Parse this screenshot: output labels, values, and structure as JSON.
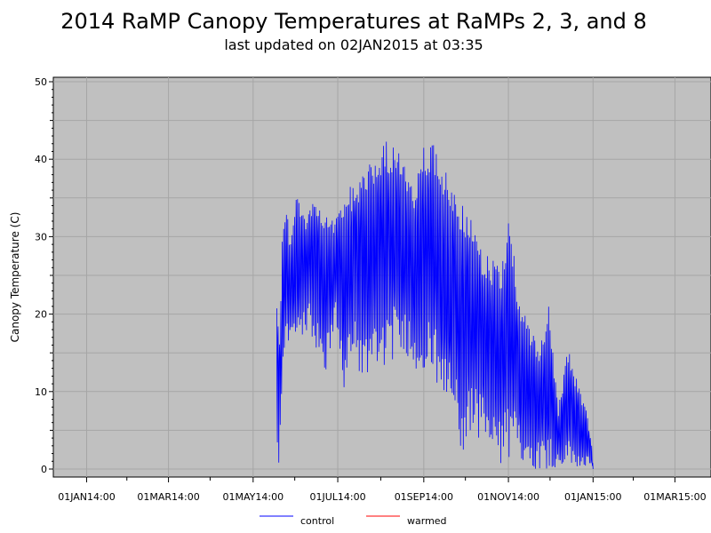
{
  "chart_data": {
    "type": "line",
    "title": "2014 RaMP Canopy Temperatures at RaMPs 2, 3, and 8",
    "subtitle": "last updated on 02JAN2015 at 03:35",
    "xlabel": "",
    "ylabel": "Canopy Temperature (C)",
    "ylim": [
      0,
      50
    ],
    "xlim": [
      "2013-12-08",
      "2015-03-27"
    ],
    "x_ticks": [
      "01JAN14:00",
      "01MAR14:00",
      "01MAY14:00",
      "01JUL14:00",
      "01SEP14:00",
      "01NOV14:00",
      "01JAN15:00",
      "01MAR15:00"
    ],
    "x_tick_dates": [
      "2014-01-01",
      "2014-03-01",
      "2014-05-01",
      "2014-07-01",
      "2014-09-01",
      "2014-11-01",
      "2015-01-01",
      "2015-03-01"
    ],
    "y_ticks": [
      0,
      10,
      20,
      30,
      40,
      50
    ],
    "grid": true,
    "legend_position": "bottom",
    "background_color": "#c0c0c0",
    "series": [
      {
        "name": "control",
        "color": "#0000ff",
        "envelope": [
          {
            "date": "2014-05-18",
            "min": 0,
            "max": 23
          },
          {
            "date": "2014-05-20",
            "min": 0,
            "max": 18
          },
          {
            "date": "2014-05-22",
            "min": 9,
            "max": 30
          },
          {
            "date": "2014-05-25",
            "min": 15,
            "max": 34
          },
          {
            "date": "2014-05-28",
            "min": 15,
            "max": 30
          },
          {
            "date": "2014-06-01",
            "min": 16,
            "max": 36
          },
          {
            "date": "2014-06-08",
            "min": 18,
            "max": 33
          },
          {
            "date": "2014-06-15",
            "min": 16,
            "max": 35
          },
          {
            "date": "2014-06-22",
            "min": 11,
            "max": 33
          },
          {
            "date": "2014-06-29",
            "min": 19,
            "max": 32
          },
          {
            "date": "2014-07-06",
            "min": 9,
            "max": 36
          },
          {
            "date": "2014-07-13",
            "min": 15,
            "max": 37
          },
          {
            "date": "2014-07-20",
            "min": 10,
            "max": 39
          },
          {
            "date": "2014-07-27",
            "min": 14,
            "max": 40
          },
          {
            "date": "2014-08-03",
            "min": 13,
            "max": 43
          },
          {
            "date": "2014-08-10",
            "min": 14,
            "max": 42
          },
          {
            "date": "2014-08-17",
            "min": 15,
            "max": 40
          },
          {
            "date": "2014-08-24",
            "min": 14,
            "max": 36
          },
          {
            "date": "2014-08-31",
            "min": 10,
            "max": 42
          },
          {
            "date": "2014-09-07",
            "min": 13,
            "max": 43
          },
          {
            "date": "2014-09-14",
            "min": 6,
            "max": 40
          },
          {
            "date": "2014-09-21",
            "min": 8,
            "max": 36
          },
          {
            "date": "2014-09-28",
            "min": 1,
            "max": 35
          },
          {
            "date": "2014-10-05",
            "min": 4,
            "max": 33
          },
          {
            "date": "2014-10-12",
            "min": 4,
            "max": 29
          },
          {
            "date": "2014-10-19",
            "min": 1,
            "max": 28
          },
          {
            "date": "2014-10-26",
            "min": 0,
            "max": 26
          },
          {
            "date": "2014-11-02",
            "min": 1,
            "max": 34
          },
          {
            "date": "2014-11-09",
            "min": 1,
            "max": 21
          },
          {
            "date": "2014-11-16",
            "min": 0,
            "max": 19
          },
          {
            "date": "2014-11-23",
            "min": 0,
            "max": 15
          },
          {
            "date": "2014-11-30",
            "min": 0,
            "max": 21
          },
          {
            "date": "2014-12-07",
            "min": 0,
            "max": 8
          },
          {
            "date": "2014-12-14",
            "min": 0,
            "max": 16
          },
          {
            "date": "2014-12-21",
            "min": 0,
            "max": 11
          },
          {
            "date": "2014-12-28",
            "min": 0,
            "max": 7
          },
          {
            "date": "2015-01-01",
            "min": 0,
            "max": 2
          }
        ]
      },
      {
        "name": "warmed",
        "color": "#ff0000",
        "envelope": []
      }
    ]
  }
}
